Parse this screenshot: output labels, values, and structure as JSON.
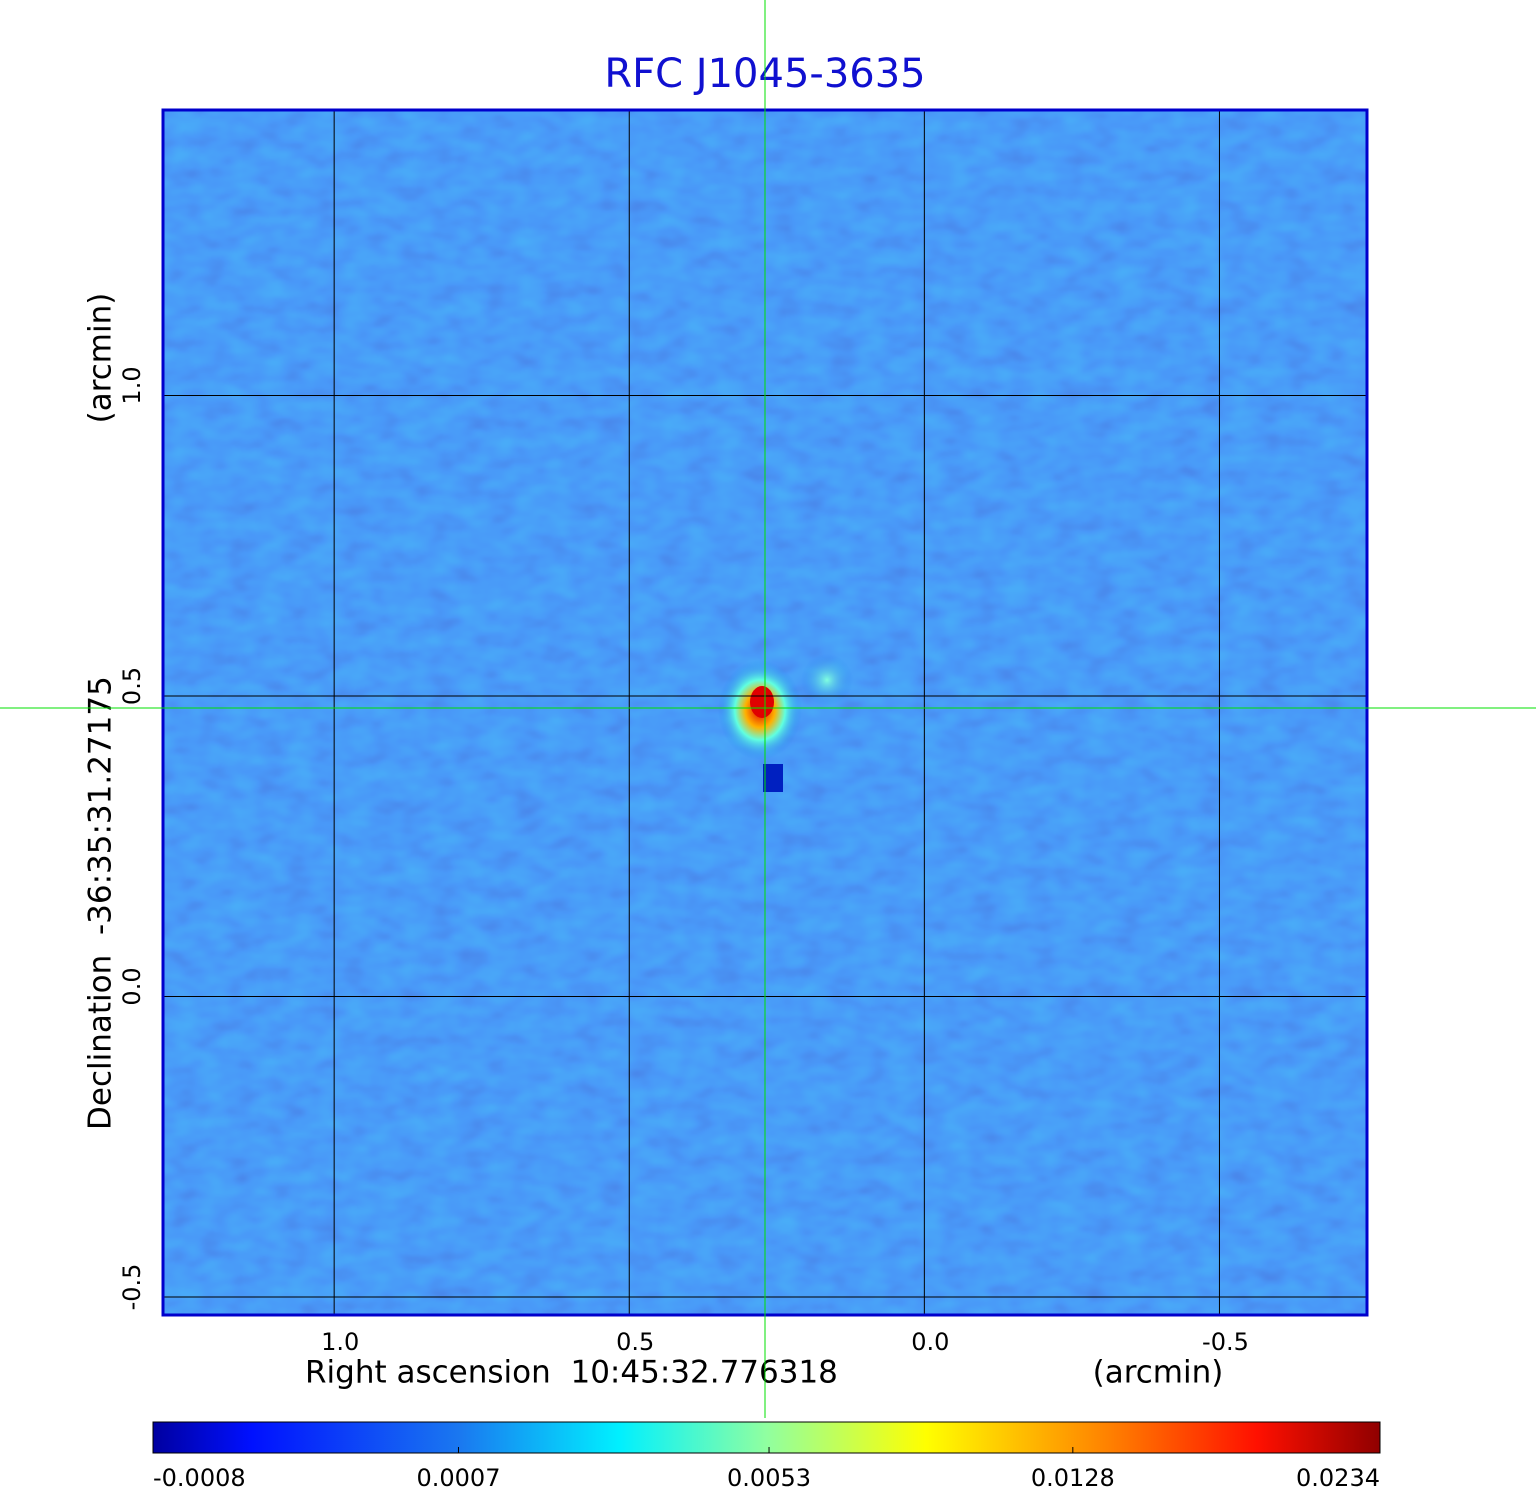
{
  "chart_data": {
    "type": "image",
    "title": "RFC J1045-3635",
    "x_label": "Right ascension  10:45:32.776318",
    "x_unit": "(arcmin)",
    "y_label": "Declination  -36:35:31.27175",
    "y_unit": "(arcmin)",
    "xlim": [
      1.29,
      -0.75
    ],
    "ylim": [
      -0.53,
      1.475
    ],
    "xticks": [
      {
        "value": 1.0,
        "label": "1.0"
      },
      0.5,
      {
        "value": 0.0,
        "label": "0.0"
      },
      -0.5
    ],
    "yticks": [
      -0.5,
      {
        "value": 0.0,
        "label": "0.0"
      },
      0.5,
      {
        "value": 1.0,
        "label": "1.0"
      }
    ],
    "grid": true,
    "frame_color": "#0000cc",
    "crosshair": {
      "x": 0.27,
      "y": 0.48,
      "color": "#00e000"
    },
    "colorbar": {
      "scale": "sqrt",
      "lim": [
        -0.0008,
        0.0234
      ],
      "ticks": [
        -0.0008,
        0.0007,
        0.0053,
        0.0128,
        0.0234
      ]
    }
  }
}
